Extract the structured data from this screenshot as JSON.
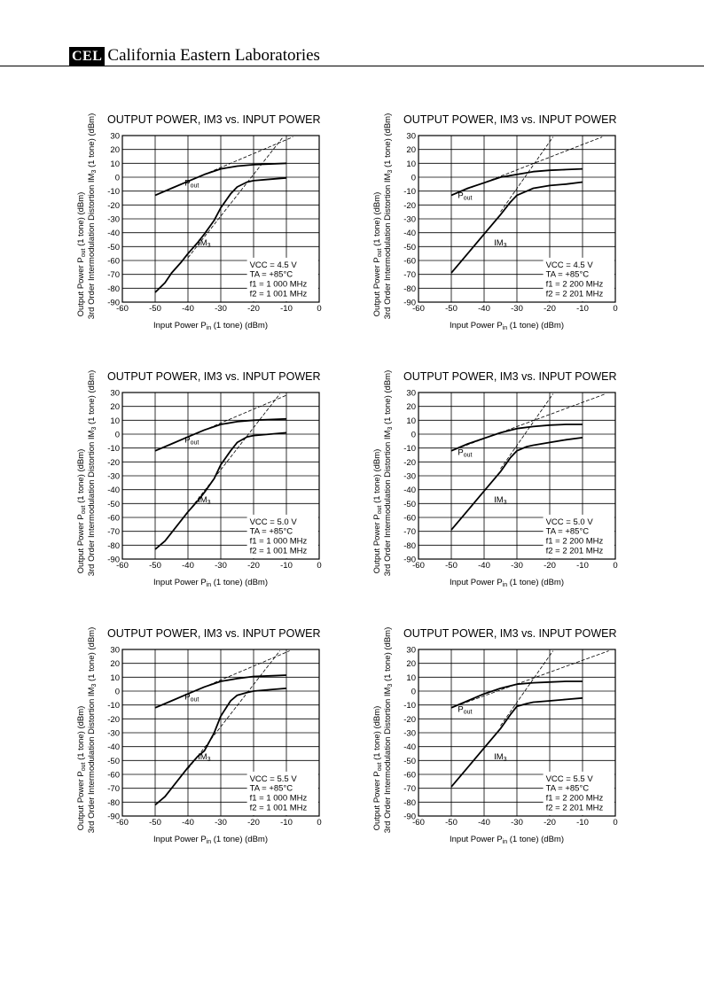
{
  "header": {
    "logo": "CEL",
    "company": "California Eastern Laboratories"
  },
  "chart_data": [
    {
      "type": "line",
      "title": "OUTPUT POWER, IM3 vs. INPUT POWER",
      "xlabel": "Input Power  Pin (1 tone)  (dBm)",
      "ylabel_outer": "Output Power  Pout (1 tone)  (dBm)",
      "ylabel_inner": "3rd Order Intermodulation Distortion  IM3 (1 tone)  (dBm)",
      "xlim": [
        -60,
        0
      ],
      "ylim": [
        -90,
        30
      ],
      "x_ticks": [
        "-60",
        "-50",
        "-40",
        "-30",
        "-20",
        "-10",
        "0"
      ],
      "y_ticks": [
        "30",
        "20",
        "10",
        "0",
        "-10",
        "-20",
        "-30",
        "-40",
        "-50",
        "-60",
        "-70",
        "-80",
        "-90"
      ],
      "grid": true,
      "conditions": [
        "VCC = 4.5 V",
        "TA = +85°C",
        "f1 = 1 000 MHz",
        "f2 = 1 001 MHz"
      ],
      "curve_labels": {
        "pout": "Pout",
        "im3": "IM3"
      },
      "series": [
        {
          "name": "Pout",
          "x": [
            -50,
            -45,
            -40,
            -35,
            -30,
            -25,
            -20,
            -15,
            -10
          ],
          "y": [
            -13,
            -8,
            -3,
            2,
            6,
            8,
            9,
            9.5,
            10
          ]
        },
        {
          "name": "IM3",
          "x": [
            -50,
            -47,
            -45,
            -42,
            -40,
            -37,
            -35,
            -32,
            -30,
            -27,
            -25,
            -22,
            -20,
            -15,
            -10
          ],
          "y": [
            -83,
            -76,
            -69,
            -61,
            -55,
            -47,
            -41,
            -31,
            -22,
            -12,
            -7,
            -3.5,
            -2.5,
            -1.5,
            -0.5
          ]
        }
      ],
      "guides": [
        {
          "x": [
            -50,
            -8
          ],
          "y": [
            -13,
            29
          ]
        },
        {
          "x": [
            -40,
            -11
          ],
          "y": [
            -58,
            29
          ]
        }
      ]
    },
    {
      "type": "line",
      "title": "OUTPUT POWER, IM3 vs. INPUT POWER",
      "xlabel": "Input Power  Pin (1 tone)  (dBm)",
      "ylabel_outer": "Output Power  Pout (1 tone)  (dBm)",
      "ylabel_inner": "3rd Order Intermodulation Distortion  IM3 (1 tone)  (dBm)",
      "xlim": [
        -60,
        0
      ],
      "ylim": [
        -90,
        30
      ],
      "x_ticks": [
        "-60",
        "-50",
        "-40",
        "-30",
        "-20",
        "-10",
        "0"
      ],
      "y_ticks": [
        "30",
        "20",
        "10",
        "0",
        "-10",
        "-20",
        "-30",
        "-40",
        "-50",
        "-60",
        "-70",
        "-80",
        "-90"
      ],
      "grid": true,
      "conditions": [
        "VCC = 4.5 V",
        "TA = +85°C",
        "f1 = 2 200 MHz",
        "f2 = 2 201 MHz"
      ],
      "curve_labels": {
        "pout": "Pout",
        "im3": "IM3"
      },
      "series": [
        {
          "name": "Pout",
          "x": [
            -50,
            -45,
            -40,
            -35,
            -30,
            -25,
            -20,
            -15,
            -10
          ],
          "y": [
            -13,
            -8,
            -4,
            0,
            2,
            4,
            5,
            5.5,
            6
          ]
        },
        {
          "name": "IM3",
          "x": [
            -50,
            -45,
            -40,
            -35,
            -32,
            -30,
            -27,
            -25,
            -20,
            -15,
            -10
          ],
          "y": [
            -69,
            -55,
            -41,
            -27,
            -18,
            -13,
            -10,
            -8,
            -6,
            -5,
            -3.5
          ]
        }
      ],
      "guides": [
        {
          "x": [
            -50,
            -4
          ],
          "y": [
            -13,
            29
          ]
        },
        {
          "x": [
            -35,
            -19
          ],
          "y": [
            -25,
            29
          ]
        }
      ]
    },
    {
      "type": "line",
      "title": "OUTPUT POWER, IM3 vs. INPUT POWER",
      "xlabel": "Input Power  Pin (1 tone)  (dBm)",
      "ylabel_outer": "Output Power  Pout (1 tone)  (dBm)",
      "ylabel_inner": "3rd Order Intermodulation Distortion  IM3 (1 tone)  (dBm)",
      "xlim": [
        -60,
        0
      ],
      "ylim": [
        -90,
        30
      ],
      "x_ticks": [
        "-60",
        "-50",
        "-40",
        "-30",
        "-20",
        "-10",
        "0"
      ],
      "y_ticks": [
        "30",
        "20",
        "10",
        "0",
        "-10",
        "-20",
        "-30",
        "-40",
        "-50",
        "-60",
        "-70",
        "-80",
        "-90"
      ],
      "grid": true,
      "conditions": [
        "VCC = 5.0 V",
        "TA = +85°C",
        "f1 = 1 000 MHz",
        "f2 = 1 001 MHz"
      ],
      "curve_labels": {
        "pout": "Pout",
        "im3": "IM3"
      },
      "series": [
        {
          "name": "Pout",
          "x": [
            -50,
            -45,
            -40,
            -35,
            -30,
            -25,
            -20,
            -15,
            -10
          ],
          "y": [
            -12,
            -7,
            -2,
            3,
            7,
            9,
            10,
            10.5,
            11
          ]
        },
        {
          "name": "IM3",
          "x": [
            -50,
            -47,
            -45,
            -42,
            -40,
            -37,
            -35,
            -32,
            -30,
            -27,
            -25,
            -22,
            -20,
            -15,
            -10
          ],
          "y": [
            -83,
            -77,
            -71,
            -62,
            -56,
            -48,
            -42,
            -32,
            -22,
            -12,
            -6,
            -2,
            -1,
            0,
            1
          ]
        }
      ],
      "guides": [
        {
          "x": [
            -50,
            -10
          ],
          "y": [
            -12,
            28
          ]
        },
        {
          "x": [
            -40,
            -12
          ],
          "y": [
            -56,
            29
          ]
        }
      ]
    },
    {
      "type": "line",
      "title": "OUTPUT POWER, IM3 vs. INPUT POWER",
      "xlabel": "Input Power  Pin (1 tone)  (dBm)",
      "ylabel_outer": "Output Power  Pout (1 tone)  (dBm)",
      "ylabel_inner": "3rd Order Intermodulation Distortion  IM3 (1 tone)  (dBm)",
      "xlim": [
        -60,
        0
      ],
      "ylim": [
        -90,
        30
      ],
      "x_ticks": [
        "-60",
        "-50",
        "-40",
        "-30",
        "-20",
        "-10",
        "0"
      ],
      "y_ticks": [
        "30",
        "20",
        "10",
        "0",
        "-10",
        "-20",
        "-30",
        "-40",
        "-50",
        "-60",
        "-70",
        "-80",
        "-90"
      ],
      "grid": true,
      "conditions": [
        "VCC = 5.0 V",
        "TA = +85°C",
        "f1 = 2 200 MHz",
        "f2 = 2 201 MHz"
      ],
      "curve_labels": {
        "pout": "Pout",
        "im3": "IM3"
      },
      "series": [
        {
          "name": "Pout",
          "x": [
            -50,
            -45,
            -40,
            -35,
            -30,
            -25,
            -20,
            -15,
            -10
          ],
          "y": [
            -12,
            -7,
            -3,
            1,
            4,
            5.5,
            6.5,
            7,
            7
          ]
        },
        {
          "name": "IM3",
          "x": [
            -50,
            -45,
            -40,
            -35,
            -32,
            -30,
            -27,
            -25,
            -20,
            -15,
            -10
          ],
          "y": [
            -69,
            -55,
            -41,
            -27,
            -17,
            -12,
            -9,
            -8,
            -6,
            -4,
            -2.5
          ]
        }
      ],
      "guides": [
        {
          "x": [
            -50,
            -3
          ],
          "y": [
            -12,
            29
          ]
        },
        {
          "x": [
            -35,
            -19
          ],
          "y": [
            -25,
            29
          ]
        }
      ]
    },
    {
      "type": "line",
      "title": "OUTPUT POWER, IM3 vs. INPUT POWER",
      "xlabel": "Input Power  Pin (1 tone)  (dBm)",
      "ylabel_outer": "Output Power  Pout (1 tone)  (dBm)",
      "ylabel_inner": "3rd Order Intermodulation Distortion  IM3 (1 tone)  (dBm)",
      "xlim": [
        -60,
        0
      ],
      "ylim": [
        -90,
        30
      ],
      "x_ticks": [
        "-60",
        "-50",
        "-40",
        "-30",
        "-20",
        "-10",
        "0"
      ],
      "y_ticks": [
        "30",
        "20",
        "10",
        "0",
        "-10",
        "-20",
        "-30",
        "-40",
        "-50",
        "-60",
        "-70",
        "-80",
        "-90"
      ],
      "grid": true,
      "conditions": [
        "VCC = 5.5 V",
        "TA = +85°C",
        "f1 = 1 000 MHz",
        "f2 = 1 001 MHz"
      ],
      "curve_labels": {
        "pout": "Pout",
        "im3": "IM3"
      },
      "series": [
        {
          "name": "Pout",
          "x": [
            -50,
            -45,
            -40,
            -35,
            -30,
            -25,
            -20,
            -15,
            -10
          ],
          "y": [
            -12,
            -7,
            -2,
            3,
            7,
            9,
            10.5,
            11,
            11.5
          ]
        },
        {
          "name": "IM3",
          "x": [
            -50,
            -47,
            -45,
            -42,
            -40,
            -37,
            -35,
            -32,
            -30,
            -27,
            -25,
            -22,
            -20,
            -15,
            -10
          ],
          "y": [
            -82,
            -76,
            -70,
            -61,
            -55,
            -47,
            -43,
            -30,
            -18,
            -7,
            -3,
            -1,
            0,
            1,
            2
          ]
        }
      ],
      "guides": [
        {
          "x": [
            -50,
            -9
          ],
          "y": [
            -12,
            29
          ]
        },
        {
          "x": [
            -40,
            -12
          ],
          "y": [
            -56,
            29
          ]
        }
      ]
    },
    {
      "type": "line",
      "title": "OUTPUT POWER, IM3 vs. INPUT POWER",
      "xlabel": "Input Power  Pin (1 tone)  (dBm)",
      "ylabel_outer": "Output Power  Pout (1 tone)  (dBm)",
      "ylabel_inner": "3rd Order Intermodulation Distortion  IM3 (1 tone)  (dBm)",
      "xlim": [
        -60,
        0
      ],
      "ylim": [
        -90,
        30
      ],
      "x_ticks": [
        "-60",
        "-50",
        "-40",
        "-30",
        "-20",
        "-10",
        "0"
      ],
      "y_ticks": [
        "30",
        "20",
        "10",
        "0",
        "-10",
        "-20",
        "-30",
        "-40",
        "-50",
        "-60",
        "-70",
        "-80",
        "-90"
      ],
      "grid": true,
      "conditions": [
        "VCC = 5.5 V",
        "TA = +85°C",
        "f1 = 2 200 MHz",
        "f2 = 2 201 MHz"
      ],
      "curve_labels": {
        "pout": "Pout",
        "im3": "IM3"
      },
      "series": [
        {
          "name": "Pout",
          "x": [
            -50,
            -45,
            -40,
            -35,
            -30,
            -25,
            -20,
            -15,
            -10
          ],
          "y": [
            -12,
            -7,
            -2,
            2,
            5,
            6,
            6.5,
            7,
            7
          ]
        },
        {
          "name": "IM3",
          "x": [
            -50,
            -45,
            -40,
            -35,
            -32,
            -30,
            -27,
            -25,
            -20,
            -15,
            -10
          ],
          "y": [
            -69,
            -55,
            -41,
            -27,
            -17,
            -11,
            -9,
            -8,
            -7,
            -6,
            -5
          ]
        }
      ],
      "guides": [
        {
          "x": [
            -50,
            -2
          ],
          "y": [
            -12,
            29
          ]
        },
        {
          "x": [
            -35,
            -19
          ],
          "y": [
            -25,
            29
          ]
        }
      ]
    }
  ]
}
